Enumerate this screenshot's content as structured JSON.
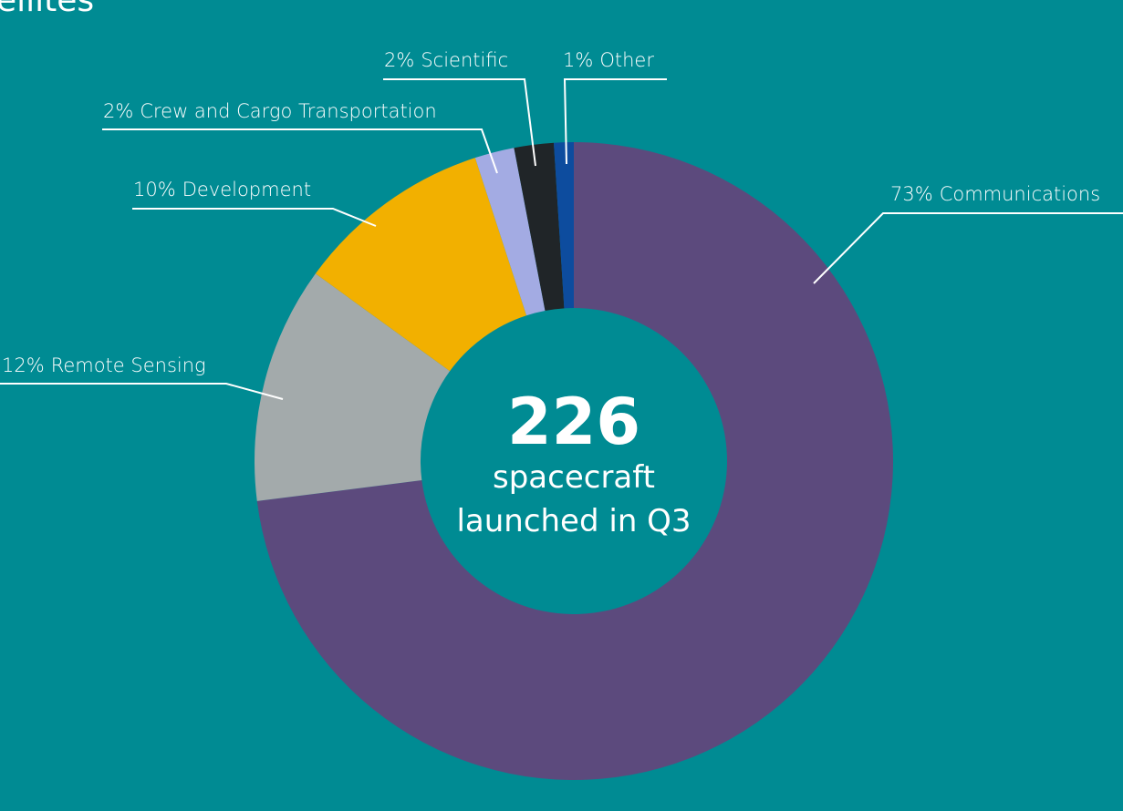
{
  "chart_data": {
    "type": "donut",
    "title": "ellites",
    "categories": [
      "Communications",
      "Remote Sensing",
      "Development",
      "Crew and Cargo Transportation",
      "Scientific",
      "Other"
    ],
    "values": [
      73,
      12,
      10,
      2,
      2,
      1
    ],
    "value_labels": [
      "73%",
      "12%",
      "10%",
      "2%",
      "2%",
      "1%"
    ],
    "colors": [
      "#5c4a7d",
      "#a3aaab",
      "#f2b000",
      "#a3abe3",
      "#202528",
      "#0d4c9e"
    ],
    "center_number": 226,
    "center_text": [
      "spacecraft",
      "launched in Q3"
    ]
  }
}
